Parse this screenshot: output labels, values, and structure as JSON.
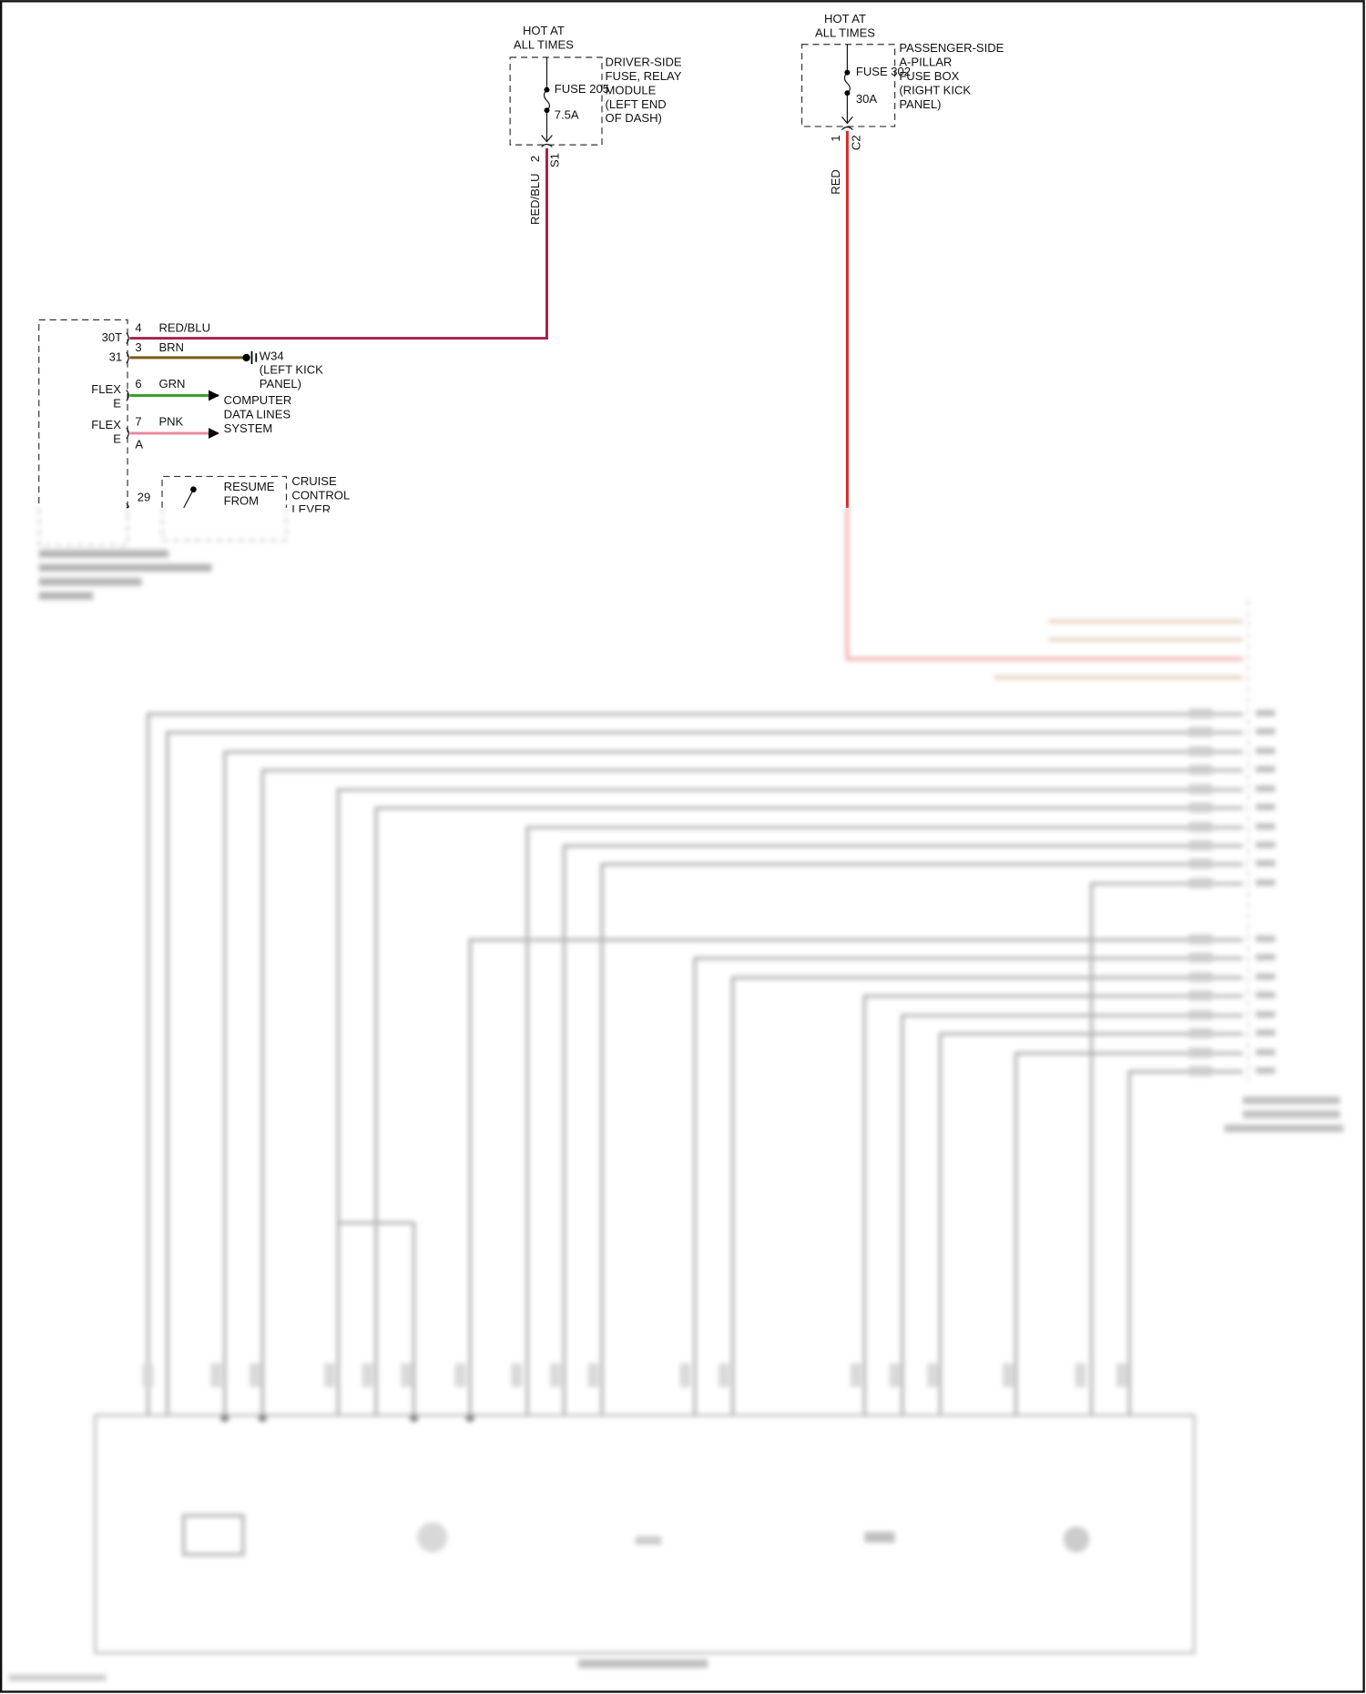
{
  "driver_fuse": {
    "hot_line1": "HOT AT",
    "hot_line2": "ALL TIMES",
    "fuse_name": "FUSE 205",
    "fuse_rating": "7.5A",
    "location": [
      "DRIVER-SIDE",
      "FUSE, RELAY",
      "MODULE",
      "(LEFT END",
      "OF DASH)"
    ],
    "pin": "2",
    "connector": "S1",
    "wire_color": "RED/BLU"
  },
  "passenger_fuse": {
    "hot_line1": "HOT AT",
    "hot_line2": "ALL TIMES",
    "fuse_name": "FUSE 302",
    "fuse_rating": "30A",
    "location": [
      "PASSENGER-SIDE",
      "A-PILLAR",
      "FUSE BOX",
      "(RIGHT KICK",
      "PANEL)"
    ],
    "pin": "1",
    "connector": "C2",
    "wire_color": "RED"
  },
  "steering_module": {
    "pins": [
      {
        "pin": "4",
        "terminal": "30T",
        "wire": "RED/BLU"
      },
      {
        "pin": "3",
        "terminal": "31",
        "wire": "BRN"
      },
      {
        "pin": "6",
        "terminal": [
          "FLEX",
          "E"
        ],
        "wire": "GRN"
      },
      {
        "pin": "7",
        "terminal": [
          "FLEX",
          "E"
        ],
        "wire": "PNK",
        "connector": "A"
      },
      {
        "pin": "29"
      }
    ]
  },
  "ground": {
    "name": "W34",
    "location": [
      "(LEFT KICK",
      "PANEL)"
    ]
  },
  "data_lines": [
    "COMPUTER",
    "DATA LINES",
    "SYSTEM"
  ],
  "cruise_switch": {
    "label": [
      "RESUME",
      "FROM"
    ],
    "component": [
      "CRUISE",
      "CONTROL",
      "LEVER"
    ]
  },
  "colors": {
    "red_blu": "#a3224f",
    "red": "#d9262a",
    "brn": "#7a5a10",
    "grn": "#3aa02a",
    "pnk": "#e88aa0",
    "blurred_wire": "#9a9a9a"
  }
}
